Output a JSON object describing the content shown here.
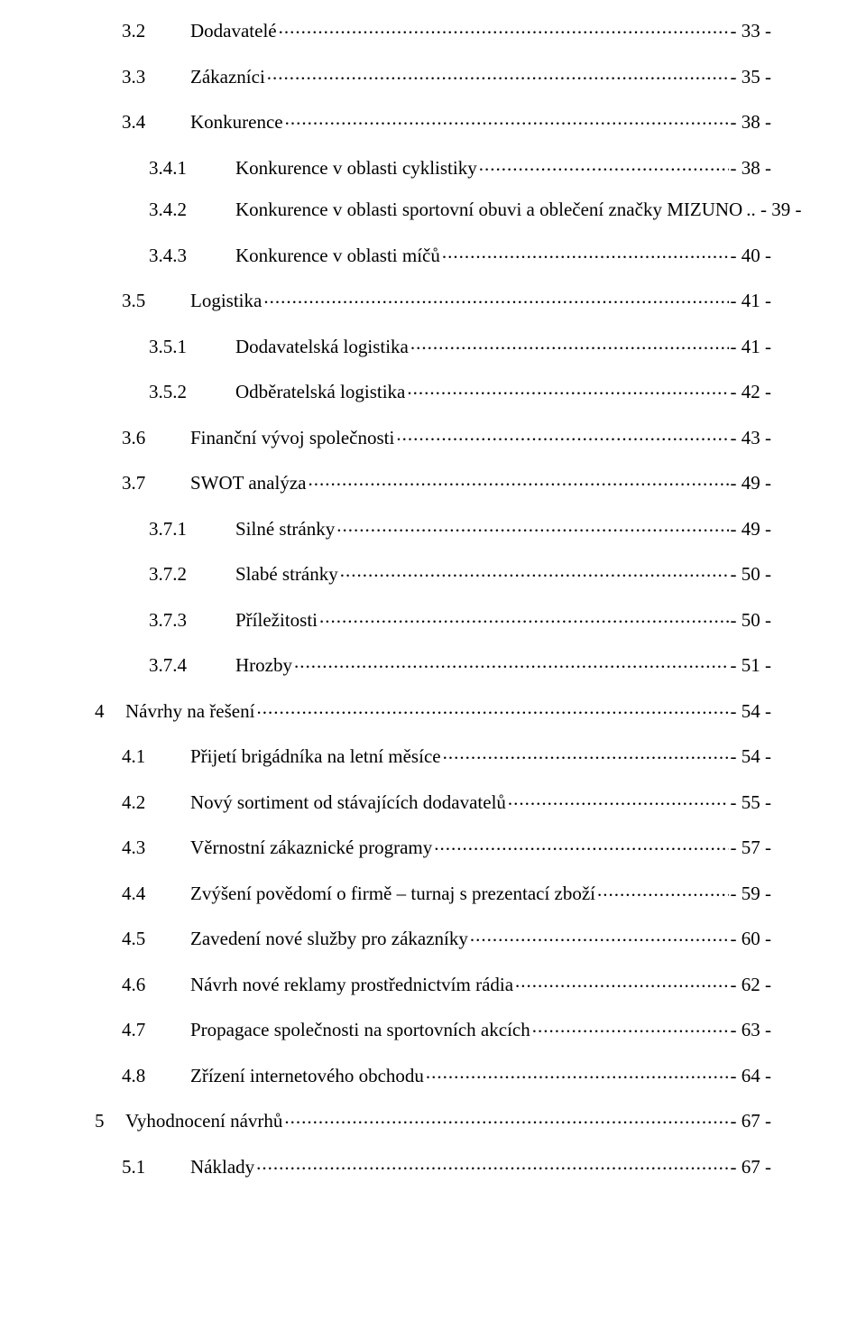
{
  "font_family": "Times New Roman",
  "font_size_pt": 16,
  "text_color": "#000000",
  "background_color": "#ffffff",
  "dot_leader_color": "#000000",
  "toc": [
    {
      "level": 2,
      "num": "3.2",
      "title": "Dodavatelé",
      "page": "- 33 -"
    },
    {
      "level": 2,
      "num": "3.3",
      "title": "Zákazníci",
      "page": "- 35 -"
    },
    {
      "level": 2,
      "num": "3.4",
      "title": "Konkurence",
      "page": "- 38 -"
    },
    {
      "level": 3,
      "num": "3.4.1",
      "title": "Konkurence v oblasti cyklistiky",
      "page": "- 38 -"
    },
    {
      "level": 3,
      "num": "3.4.2",
      "title": "Konkurence v oblasti sportovní obuvi a oblečení značky MIZUNO",
      "page": ".. - 39 -"
    },
    {
      "level": 3,
      "num": "3.4.3",
      "title": "Konkurence v oblasti míčů",
      "page": "- 40 -"
    },
    {
      "level": 2,
      "num": "3.5",
      "title": "Logistika",
      "page": "- 41 -"
    },
    {
      "level": 3,
      "num": "3.5.1",
      "title": "Dodavatelská logistika",
      "page": "- 41 -"
    },
    {
      "level": 3,
      "num": "3.5.2",
      "title": "Odběratelská logistika",
      "page": "- 42 -"
    },
    {
      "level": 2,
      "num": "3.6",
      "title": "Finanční vývoj společnosti",
      "page": "- 43 -"
    },
    {
      "level": 2,
      "num": "3.7",
      "title": "SWOT analýza",
      "page": "- 49 -"
    },
    {
      "level": 3,
      "num": "3.7.1",
      "title": "Silné stránky",
      "page": "- 49 -"
    },
    {
      "level": 3,
      "num": "3.7.2",
      "title": "Slabé stránky",
      "page": "- 50 -"
    },
    {
      "level": 3,
      "num": "3.7.3",
      "title": "Příležitosti",
      "page": "- 50 -"
    },
    {
      "level": 3,
      "num": "3.7.4",
      "title": "Hrozby",
      "page": "- 51 -"
    },
    {
      "level": 1,
      "num": "4",
      "title": "Návrhy na řešení",
      "page": "- 54 -"
    },
    {
      "level": 2,
      "num": "4.1",
      "title": "Přijetí brigádníka na letní měsíce",
      "page": "- 54 -"
    },
    {
      "level": 2,
      "num": "4.2",
      "title": "Nový sortiment od stávajících dodavatelů",
      "page": "- 55 -"
    },
    {
      "level": 2,
      "num": "4.3",
      "title": "Věrnostní zákaznické programy",
      "page": "- 57 -"
    },
    {
      "level": 2,
      "num": "4.4",
      "title": "Zvýšení povědomí o firmě – turnaj s prezentací zboží",
      "page": "- 59 -"
    },
    {
      "level": 2,
      "num": "4.5",
      "title": "Zavedení nové služby pro zákazníky",
      "page": "- 60 -"
    },
    {
      "level": 2,
      "num": "4.6",
      "title": "Návrh nové reklamy prostřednictvím rádia",
      "page": "- 62 -"
    },
    {
      "level": 2,
      "num": "4.7",
      "title": "Propagace společnosti na sportovních akcích",
      "page": "- 63 -"
    },
    {
      "level": 2,
      "num": "4.8",
      "title": "Zřízení internetového obchodu",
      "page": "- 64 -"
    },
    {
      "level": 1,
      "num": "5",
      "title": "Vyhodnocení návrhů",
      "page": "- 67 -"
    },
    {
      "level": 2,
      "num": "5.1",
      "title": "Náklady",
      "page": "- 67 -"
    }
  ]
}
